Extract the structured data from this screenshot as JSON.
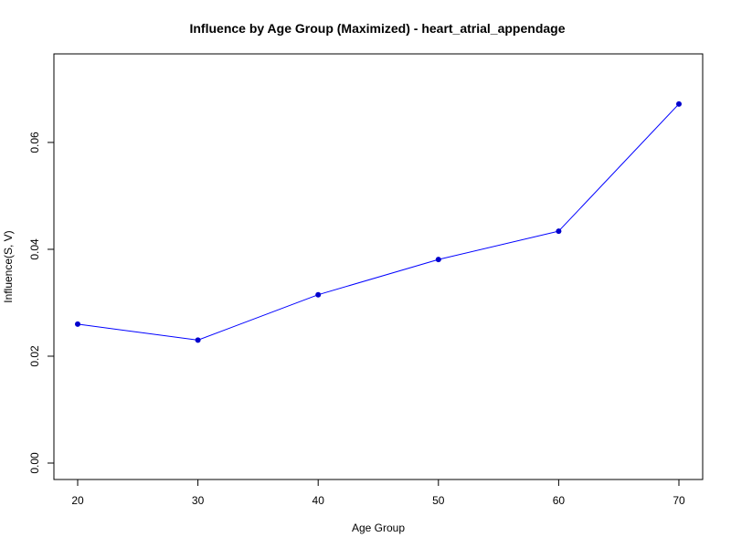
{
  "chart_data": {
    "type": "line",
    "title": "Influence by Age Group (Maximized) - heart_atrial_appendage",
    "xlabel": "Age Group",
    "ylabel": "Influence(S, V)",
    "x": [
      20,
      30,
      40,
      50,
      60,
      70
    ],
    "series": [
      {
        "values": [
          0.026,
          0.023,
          0.0315,
          0.0381,
          0.0434,
          0.0672
        ]
      }
    ],
    "xticks": [
      "20",
      "30",
      "40",
      "50",
      "60",
      "70"
    ],
    "yticks": [
      "0.00",
      "0.02",
      "0.04",
      "0.06"
    ],
    "xlim": [
      20,
      70
    ],
    "ylim": [
      0,
      0.067
    ],
    "grid": false,
    "colors": {
      "line": "#0000ff",
      "point": "#0000cd"
    }
  }
}
